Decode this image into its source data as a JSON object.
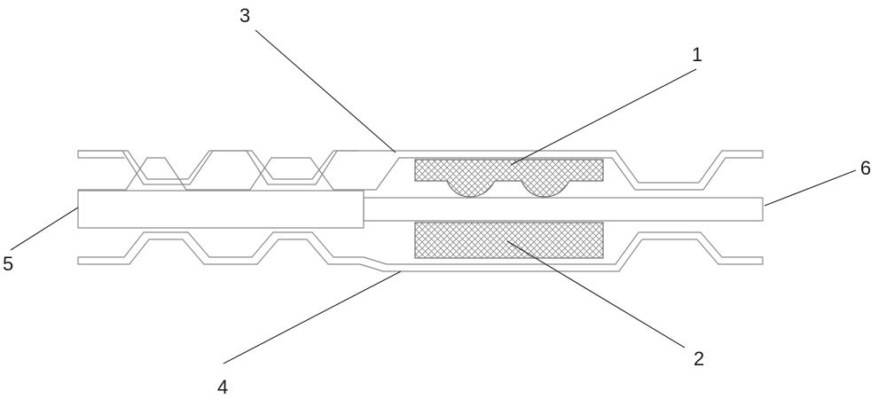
{
  "figure": {
    "callouts": [
      {
        "id": "1",
        "label": "1"
      },
      {
        "id": "2",
        "label": "2"
      },
      {
        "id": "3",
        "label": "3"
      },
      {
        "id": "4",
        "label": "4"
      },
      {
        "id": "5",
        "label": "5"
      },
      {
        "id": "6",
        "label": "6"
      }
    ]
  },
  "colors": {
    "outline": "#8c8c8c",
    "mesh_stroke": "#6f6f6f",
    "leader": "#222222",
    "background": "#ffffff"
  }
}
